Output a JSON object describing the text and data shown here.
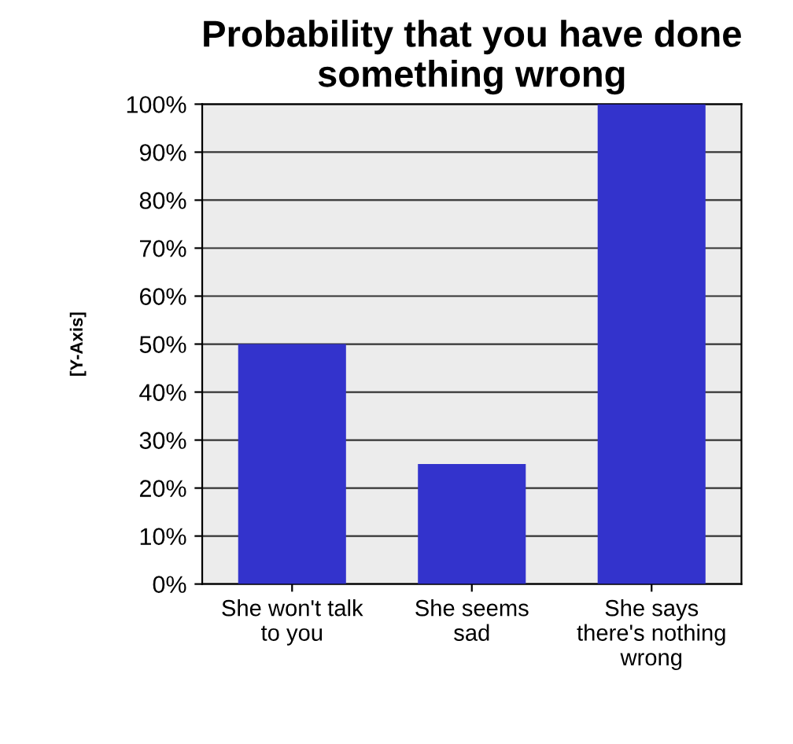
{
  "chart_data": {
    "type": "bar",
    "title": "Probability that you have done\nsomething wrong",
    "ylabel": "[Y-Axis]",
    "categories": [
      "She won't talk\nto you",
      "She seems\nsad",
      "She says\nthere's nothing\nwrong"
    ],
    "values": [
      50,
      25,
      100
    ],
    "color": "#3333cc",
    "ylim": [
      0,
      100
    ],
    "yticks": [
      {
        "value": 0,
        "label": "0%"
      },
      {
        "value": 10,
        "label": "10%"
      },
      {
        "value": 20,
        "label": "20%"
      },
      {
        "value": 30,
        "label": "30%"
      },
      {
        "value": 40,
        "label": "40%"
      },
      {
        "value": 50,
        "label": "50%"
      },
      {
        "value": 60,
        "label": "60%"
      },
      {
        "value": 70,
        "label": "70%"
      },
      {
        "value": 80,
        "label": "80%"
      },
      {
        "value": 90,
        "label": "90%"
      },
      {
        "value": 100,
        "label": "100%"
      }
    ],
    "grid": "y"
  }
}
